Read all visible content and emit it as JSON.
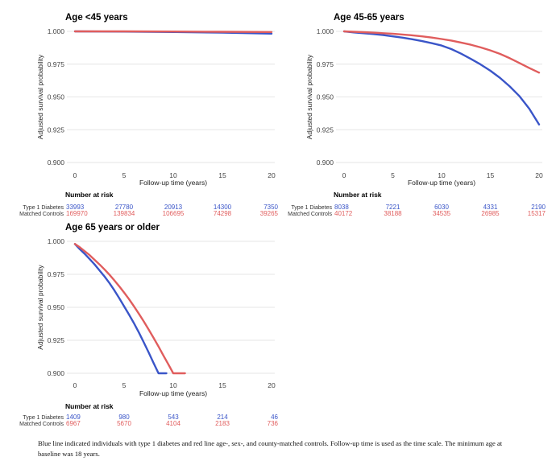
{
  "colors": {
    "diabetes": "#3a55c8",
    "controls": "#e05d5d"
  },
  "chart_data": [
    {
      "type": "line",
      "title": "Age <45 years",
      "xlabel": "Follow-up time (years)",
      "ylabel": "Adjusted survival probability",
      "xlim": [
        0,
        20
      ],
      "ylim": [
        0.9,
        1.0
      ],
      "x_ticks": [
        "0",
        "5",
        "10",
        "15",
        "20"
      ],
      "y_ticks": [
        "0.900",
        "0.925",
        "0.950",
        "0.975",
        "1.000"
      ],
      "grid": "horizontal",
      "series": [
        {
          "name": "Type 1 Diabetes",
          "color": "#3a55c8",
          "x": [
            0,
            5,
            10,
            15,
            20
          ],
          "y": [
            1.0,
            0.9998,
            0.9995,
            0.999,
            0.9983
          ]
        },
        {
          "name": "Matched Controls",
          "color": "#e05d5d",
          "x": [
            0,
            5,
            10,
            15,
            20
          ],
          "y": [
            1.0,
            1.0,
            0.9999,
            0.9997,
            0.9995
          ]
        }
      ],
      "risk_table": {
        "heading": "Number at risk",
        "rows": [
          {
            "label": "Type 1 Diabetes",
            "color": "#3a55c8",
            "values": [
              "33993",
              "27780",
              "20913",
              "14300",
              "7350"
            ]
          },
          {
            "label": "Matched Controls",
            "color": "#e05d5d",
            "values": [
              "169970",
              "139834",
              "106695",
              "74298",
              "39265"
            ]
          }
        ]
      }
    },
    {
      "type": "line",
      "title": "Age 45-65 years",
      "xlabel": "Follow-up time (years)",
      "ylabel": "Adjusted survival probability",
      "xlim": [
        0,
        20
      ],
      "ylim": [
        0.9,
        1.0
      ],
      "x_ticks": [
        "0",
        "5",
        "10",
        "15",
        "20"
      ],
      "y_ticks": [
        "0.900",
        "0.925",
        "0.950",
        "0.975",
        "1.000"
      ],
      "grid": "horizontal",
      "series": [
        {
          "name": "Type 1 Diabetes",
          "color": "#3a55c8",
          "x": [
            0,
            1,
            2,
            3,
            4,
            5,
            6,
            7,
            8,
            9,
            10,
            11,
            12,
            13,
            14,
            15,
            16,
            17,
            18,
            19,
            20
          ],
          "y": [
            1.0,
            0.9992,
            0.9986,
            0.998,
            0.9972,
            0.9962,
            0.9952,
            0.994,
            0.9926,
            0.991,
            0.9892,
            0.9865,
            0.983,
            0.979,
            0.9748,
            0.97,
            0.9645,
            0.958,
            0.9505,
            0.941,
            0.929
          ]
        },
        {
          "name": "Matched Controls",
          "color": "#e05d5d",
          "x": [
            0,
            1,
            2,
            3,
            4,
            5,
            6,
            7,
            8,
            9,
            10,
            11,
            12,
            13,
            14,
            15,
            16,
            17,
            18,
            19,
            20
          ],
          "y": [
            1.0,
            0.9997,
            0.9994,
            0.999,
            0.9986,
            0.9982,
            0.9976,
            0.997,
            0.9962,
            0.9953,
            0.9942,
            0.993,
            0.9915,
            0.9898,
            0.9878,
            0.9855,
            0.9828,
            0.9795,
            0.9758,
            0.972,
            0.9685
          ]
        }
      ],
      "risk_table": {
        "heading": "Number at risk",
        "rows": [
          {
            "label": "Type 1 Diabetes",
            "color": "#3a55c8",
            "values": [
              "8038",
              "7221",
              "6030",
              "4331",
              "2190"
            ]
          },
          {
            "label": "Matched Controls",
            "color": "#e05d5d",
            "values": [
              "40172",
              "38188",
              "34535",
              "26985",
              "15317"
            ]
          }
        ]
      }
    },
    {
      "type": "line",
      "title": "Age 65 years or older",
      "xlabel": "Follow-up time (years)",
      "ylabel": "Adjusted survival probability",
      "xlim": [
        0,
        20
      ],
      "ylim": [
        0.9,
        1.0
      ],
      "x_ticks": [
        "0",
        "5",
        "10",
        "15",
        "20"
      ],
      "y_ticks": [
        "0.900",
        "0.925",
        "0.950",
        "0.975",
        "1.000"
      ],
      "grid": "horizontal",
      "series": [
        {
          "name": "Type 1 Diabetes",
          "color": "#3a55c8",
          "x": [
            0,
            0.5,
            1,
            1.5,
            2,
            2.5,
            3,
            3.5,
            4,
            4.5,
            5,
            5.5,
            6,
            6.5,
            7,
            7.5,
            8,
            8.5,
            9,
            9.3
          ],
          "y": [
            0.998,
            0.994,
            0.9905,
            0.9865,
            0.9825,
            0.978,
            0.9735,
            0.9685,
            0.963,
            0.957,
            0.9508,
            0.9445,
            0.938,
            0.931,
            0.9235,
            0.9158,
            0.9078,
            0.9,
            0.9,
            0.9
          ]
        },
        {
          "name": "Matched Controls",
          "color": "#e05d5d",
          "x": [
            0,
            0.5,
            1,
            1.5,
            2,
            2.5,
            3,
            3.5,
            4,
            4.5,
            5,
            5.5,
            6,
            6.5,
            7,
            7.5,
            8,
            8.5,
            9,
            9.5,
            10,
            10.5,
            11,
            11.2
          ],
          "y": [
            0.998,
            0.9955,
            0.9925,
            0.9895,
            0.986,
            0.9825,
            0.9788,
            0.9748,
            0.9705,
            0.966,
            0.9612,
            0.9562,
            0.9508,
            0.9452,
            0.9393,
            0.9332,
            0.9268,
            0.9203,
            0.9135,
            0.9068,
            0.9,
            0.9,
            0.9,
            0.9
          ]
        }
      ],
      "risk_table": {
        "heading": "Number at risk",
        "rows": [
          {
            "label": "Type 1 Diabetes",
            "color": "#3a55c8",
            "values": [
              "1409",
              "980",
              "543",
              "214",
              "46"
            ]
          },
          {
            "label": "Matched Controls",
            "color": "#e05d5d",
            "values": [
              "6967",
              "5670",
              "4104",
              "2183",
              "736"
            ]
          }
        ]
      }
    }
  ],
  "caption": "Blue line indicated individuals with type 1 diabetes and red line age-, sex-, and county-matched controls. Follow-up time is used as the time scale. The minimum age at baseline was 18 years."
}
